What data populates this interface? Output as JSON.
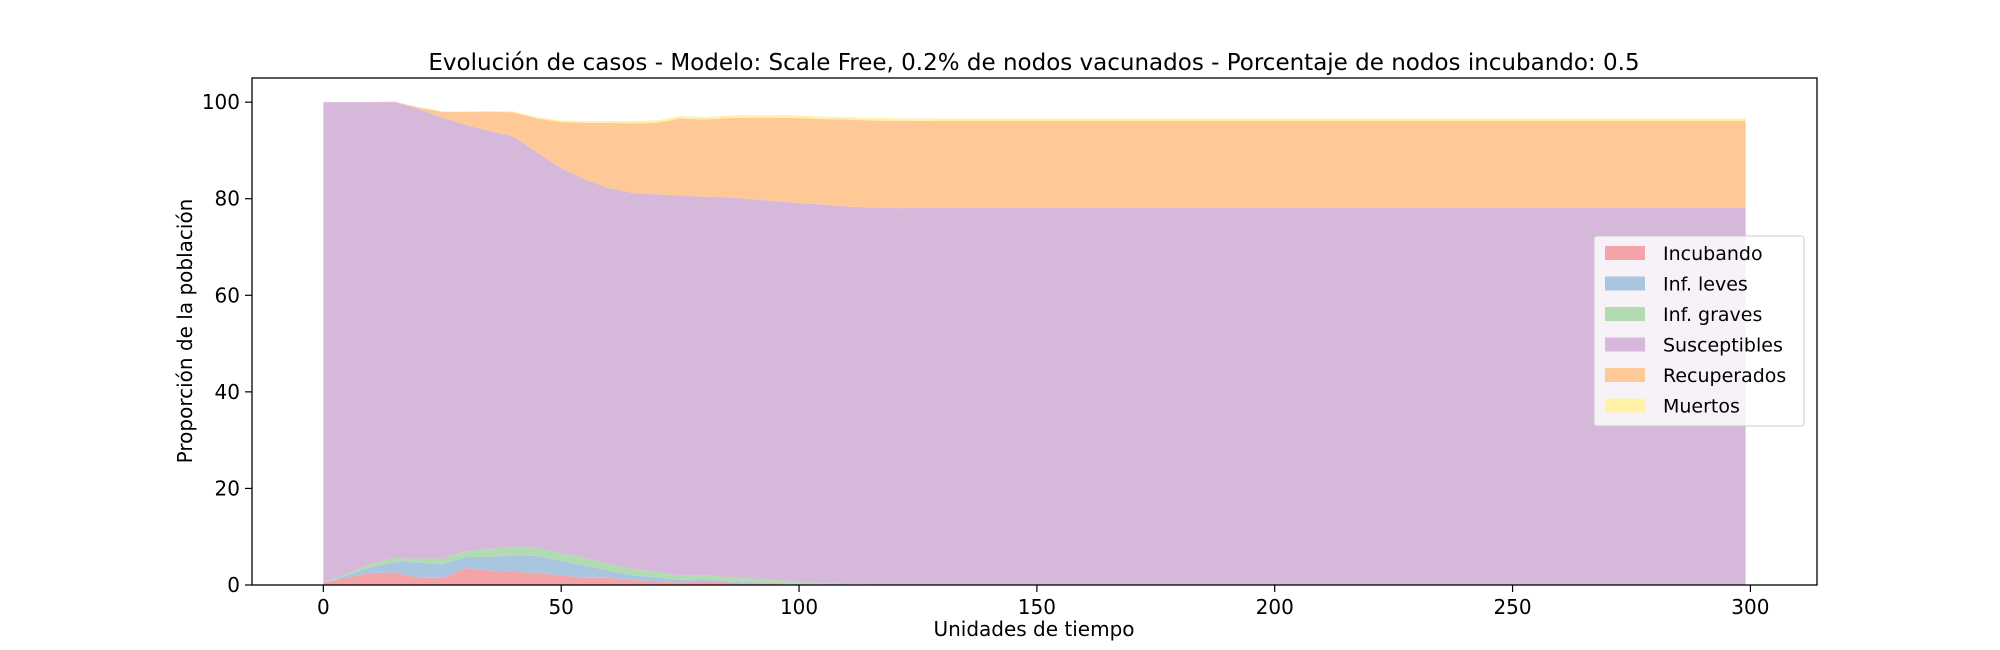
{
  "chart_data": {
    "type": "area",
    "stacked": true,
    "title": "Evolución de casos - Modelo: Scale Free, 0.2% de nodos vacunados - Porcentaje de nodos incubando: 0.5",
    "xlabel": "Unidades de tiempo",
    "ylabel": "Proporción de la población",
    "xlim": [
      -15,
      314
    ],
    "ylim": [
      0,
      105
    ],
    "xticks": [
      0,
      50,
      100,
      150,
      200,
      250,
      300
    ],
    "yticks": [
      0,
      20,
      40,
      60,
      80,
      100
    ],
    "grid": false,
    "legend_position": "center-right",
    "x": [
      0,
      5,
      10,
      15,
      20,
      25,
      30,
      35,
      40,
      45,
      50,
      55,
      60,
      65,
      70,
      75,
      80,
      85,
      90,
      95,
      100,
      105,
      110,
      115,
      120,
      130,
      140,
      150,
      200,
      250,
      299
    ],
    "series": [
      {
        "name": "Incubando",
        "color": "#f4a3a8",
        "values": [
          0.5,
          1.5,
          2.5,
          2.6,
          1.5,
          1.5,
          3.5,
          3.0,
          2.7,
          2.5,
          2.0,
          1.5,
          1.5,
          1.0,
          0.8,
          0.5,
          0.8,
          0.5,
          0.3,
          0.2,
          0.1,
          0.05,
          0,
          0,
          0,
          0,
          0,
          0,
          0,
          0,
          0
        ]
      },
      {
        "name": "Inf. leves",
        "color": "#a9c5e0",
        "values": [
          0,
          0.5,
          1.2,
          2.2,
          3.2,
          2.8,
          2.3,
          2.8,
          3.5,
          3.5,
          3.0,
          2.5,
          1.5,
          1.0,
          0.8,
          0.5,
          0.4,
          0.3,
          0.3,
          0.2,
          0.1,
          0.05,
          0,
          0,
          0,
          0,
          0,
          0,
          0,
          0,
          0
        ]
      },
      {
        "name": "Inf. graves",
        "color": "#b3dbb1",
        "values": [
          0,
          0.3,
          0.7,
          0.8,
          0.8,
          1.2,
          1.2,
          1.7,
          1.8,
          1.8,
          1.6,
          1.6,
          1.4,
          1.3,
          1.2,
          0.9,
          0.9,
          0.8,
          0.7,
          0.6,
          0.4,
          0.3,
          0.2,
          0.1,
          0.05,
          0,
          0,
          0,
          0,
          0,
          0
        ]
      },
      {
        "name": "Susceptibles",
        "color": "#d5b8da",
        "values": [
          99.5,
          97.7,
          95.6,
          94.4,
          93.1,
          91.3,
          88.3,
          86.5,
          84.9,
          81.8,
          79.7,
          78.4,
          77.8,
          77.9,
          78.1,
          78.8,
          78.3,
          78.7,
          78.6,
          78.5,
          78.5,
          78.4,
          78.2,
          78.1,
          78.0,
          78.1,
          78.1,
          78.1,
          78.1,
          78.1,
          78.1
        ]
      },
      {
        "name": "Recuperados",
        "color": "#fec997",
        "values": [
          0,
          0,
          0,
          0.1,
          0.3,
          1.2,
          2.7,
          4.0,
          5.0,
          7.0,
          9.6,
          11.7,
          13.5,
          14.4,
          14.8,
          15.9,
          16.0,
          16.4,
          16.9,
          17.3,
          17.6,
          17.7,
          18.0,
          18.0,
          18.1,
          18.0,
          18.0,
          18.0,
          18.0,
          18.0,
          18.0
        ]
      },
      {
        "name": "Muertos",
        "color": "#fff2a6",
        "values": [
          0,
          0,
          0,
          0,
          0.1,
          0.1,
          0.1,
          0.2,
          0.2,
          0.3,
          0.3,
          0.4,
          0.4,
          0.5,
          0.5,
          0.5,
          0.5,
          0.5,
          0.5,
          0.5,
          0.5,
          0.5,
          0.5,
          0.5,
          0.5,
          0.5,
          0.5,
          0.5,
          0.5,
          0.5,
          0.5
        ]
      }
    ]
  }
}
